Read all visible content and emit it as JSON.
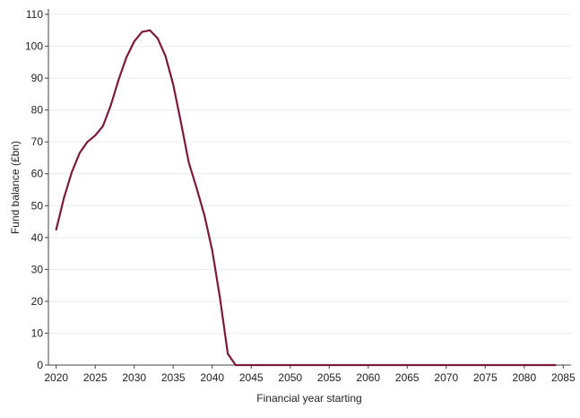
{
  "chart_data": {
    "type": "line",
    "xlabel": "Financial year starting",
    "ylabel": "Fund balance (£bn)",
    "xlim": [
      2019,
      2086
    ],
    "ylim": [
      0,
      110
    ],
    "x_ticks": [
      2020,
      2025,
      2030,
      2035,
      2040,
      2045,
      2050,
      2055,
      2060,
      2065,
      2070,
      2075,
      2080,
      2085
    ],
    "y_ticks": [
      0,
      10,
      20,
      30,
      40,
      50,
      60,
      70,
      80,
      90,
      100,
      110
    ],
    "grid": "horizontal",
    "line_color": "#7b1a3c",
    "series": [
      {
        "x": [
          2020,
          2021,
          2022,
          2023,
          2024,
          2025,
          2026,
          2027,
          2028,
          2029,
          2030,
          2031,
          2032,
          2033,
          2034,
          2035,
          2036,
          2037,
          2038,
          2039,
          2040,
          2041,
          2042,
          2043,
          2044,
          2045,
          2046,
          2047,
          2048,
          2049,
          2050,
          2051,
          2052,
          2053,
          2054,
          2055,
          2056,
          2057,
          2058,
          2059,
          2060,
          2061,
          2062,
          2063,
          2064,
          2065,
          2066,
          2067,
          2068,
          2069,
          2070,
          2071,
          2072,
          2073,
          2074,
          2075,
          2076,
          2077,
          2078,
          2079,
          2080,
          2081,
          2082,
          2083,
          2084
        ],
        "values": [
          42.5,
          52.5,
          60.5,
          66.5,
          70,
          72,
          75,
          81.5,
          89.5,
          96.5,
          101.5,
          104.5,
          105,
          102.5,
          97,
          88,
          76,
          63.5,
          55.5,
          47,
          36,
          21,
          3.5,
          0,
          0,
          0,
          0,
          0,
          0,
          0,
          0,
          0,
          0,
          0,
          0,
          0,
          0,
          0,
          0,
          0,
          0,
          0,
          0,
          0,
          0,
          0,
          0,
          0,
          0,
          0,
          0,
          0,
          0,
          0,
          0,
          0,
          0,
          0,
          0,
          0,
          0,
          0,
          0,
          0,
          0
        ]
      }
    ]
  }
}
